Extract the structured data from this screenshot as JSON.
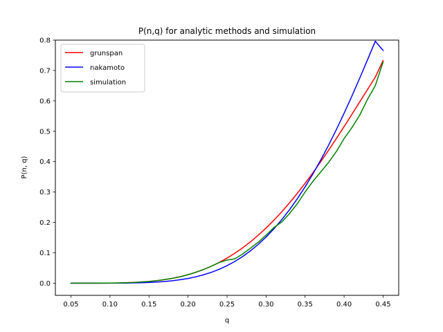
{
  "chart_data": {
    "type": "line",
    "title": "P(n,q) for analytic methods and simulation",
    "xlabel": "q",
    "ylabel": "P(n, q)",
    "xlim": [
      0.03,
      0.47
    ],
    "ylim": [
      -0.04,
      0.8
    ],
    "xticks": [
      0.05,
      0.1,
      0.15,
      0.2,
      0.25,
      0.3,
      0.35,
      0.4,
      0.45
    ],
    "xtick_labels": [
      "0.05",
      "0.10",
      "0.15",
      "0.20",
      "0.25",
      "0.30",
      "0.35",
      "0.40",
      "0.45"
    ],
    "yticks": [
      0.0,
      0.1,
      0.2,
      0.3,
      0.4,
      0.5,
      0.6,
      0.7,
      0.8
    ],
    "ytick_labels": [
      "0.0",
      "0.1",
      "0.2",
      "0.3",
      "0.4",
      "0.5",
      "0.6",
      "0.7",
      "0.8"
    ],
    "grid": false,
    "legend_position": "top-left",
    "x": [
      0.05,
      0.06,
      0.07,
      0.08,
      0.09,
      0.1,
      0.11,
      0.12,
      0.13,
      0.14,
      0.15,
      0.16,
      0.17,
      0.18,
      0.19,
      0.2,
      0.21,
      0.22,
      0.23,
      0.24,
      0.25,
      0.26,
      0.27,
      0.28,
      0.29,
      0.3,
      0.31,
      0.32,
      0.33,
      0.34,
      0.35,
      0.36,
      0.37,
      0.38,
      0.39,
      0.4,
      0.41,
      0.42,
      0.43,
      0.44,
      0.45
    ],
    "series": [
      {
        "name": "grunspan",
        "color": "#ff0000",
        "values": [
          0.0,
          0.0,
          0.0,
          0.0001,
          0.0002,
          0.0004,
          0.0008,
          0.0014,
          0.0024,
          0.0038,
          0.0058,
          0.0084,
          0.0118,
          0.0161,
          0.0215,
          0.028,
          0.0358,
          0.0451,
          0.0559,
          0.0683,
          0.0825,
          0.0985,
          0.1163,
          0.1361,
          0.1578,
          0.1815,
          0.2071,
          0.2347,
          0.2642,
          0.2955,
          0.3286,
          0.3633,
          0.3995,
          0.437,
          0.4757,
          0.5153,
          0.5556,
          0.5964,
          0.6373,
          0.6782,
          0.7327
        ]
      },
      {
        "name": "nakamoto",
        "color": "#0000ff",
        "values": [
          0.0,
          0.0,
          0.0,
          0.0,
          0.0001,
          0.0001,
          0.0003,
          0.0005,
          0.0009,
          0.0015,
          0.0024,
          0.0037,
          0.0056,
          0.0081,
          0.0114,
          0.0156,
          0.021,
          0.0277,
          0.0359,
          0.0458,
          0.0577,
          0.0716,
          0.0878,
          0.1065,
          0.1278,
          0.1518,
          0.1787,
          0.2086,
          0.2416,
          0.2777,
          0.317,
          0.3594,
          0.405,
          0.4536,
          0.505,
          0.5592,
          0.6158,
          0.6745,
          0.7349,
          0.7964,
          0.766
        ]
      },
      {
        "name": "simulation",
        "color": "#008000",
        "values": [
          0.0,
          0.0,
          0.0,
          0.0,
          0.0003,
          0.0005,
          0.0008,
          0.0015,
          0.002,
          0.004,
          0.0055,
          0.0085,
          0.012,
          0.016,
          0.021,
          0.028,
          0.036,
          0.045,
          0.056,
          0.068,
          0.076,
          0.08,
          0.096,
          0.115,
          0.135,
          0.158,
          0.183,
          0.201,
          0.229,
          0.261,
          0.3,
          0.335,
          0.366,
          0.397,
          0.433,
          0.476,
          0.512,
          0.553,
          0.605,
          0.65,
          0.728
        ]
      }
    ]
  }
}
